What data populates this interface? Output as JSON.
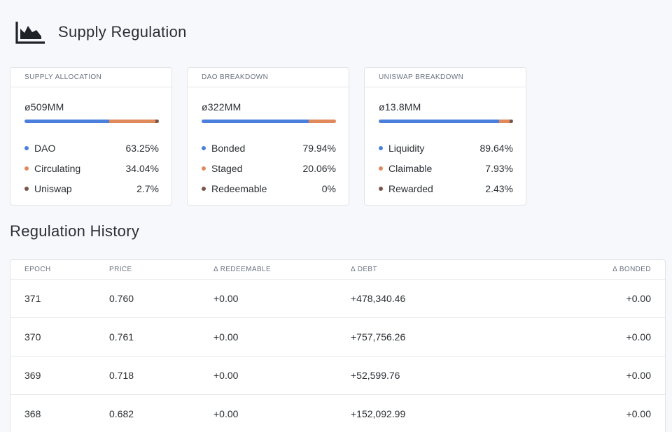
{
  "header": {
    "title": "Supply Regulation",
    "icon": "area-chart-icon"
  },
  "colors": {
    "blue": "#4a80dc",
    "orange": "#e0895a",
    "brown": "#7a5548"
  },
  "cards": [
    {
      "title": "SUPPLY ALLOCATION",
      "total": "ø509MM",
      "segments": [
        63.25,
        34.04,
        2.7
      ],
      "items": [
        {
          "label": "DAO",
          "value": "63.25%"
        },
        {
          "label": "Circulating",
          "value": "34.04%"
        },
        {
          "label": "Uniswap",
          "value": "2.7%"
        }
      ]
    },
    {
      "title": "DAO BREAKDOWN",
      "total": "ø322MM",
      "segments": [
        79.94,
        20.06,
        0
      ],
      "items": [
        {
          "label": "Bonded",
          "value": "79.94%"
        },
        {
          "label": "Staged",
          "value": "20.06%"
        },
        {
          "label": "Redeemable",
          "value": "0%"
        }
      ]
    },
    {
      "title": "UNISWAP BREAKDOWN",
      "total": "ø13.8MM",
      "segments": [
        89.64,
        7.93,
        2.43
      ],
      "items": [
        {
          "label": "Liquidity",
          "value": "89.64%"
        },
        {
          "label": "Claimable",
          "value": "7.93%"
        },
        {
          "label": "Rewarded",
          "value": "2.43%"
        }
      ]
    }
  ],
  "history": {
    "title": "Regulation History",
    "columns": [
      "EPOCH",
      "PRICE",
      "Δ REDEEMABLE",
      "Δ DEBT",
      "Δ BONDED"
    ],
    "rows": [
      [
        "371",
        "0.760",
        "+0.00",
        "+478,340.46",
        "+0.00"
      ],
      [
        "370",
        "0.761",
        "+0.00",
        "+757,756.26",
        "+0.00"
      ],
      [
        "369",
        "0.718",
        "+0.00",
        "+52,599.76",
        "+0.00"
      ],
      [
        "368",
        "0.682",
        "+0.00",
        "+152,092.99",
        "+0.00"
      ]
    ]
  }
}
